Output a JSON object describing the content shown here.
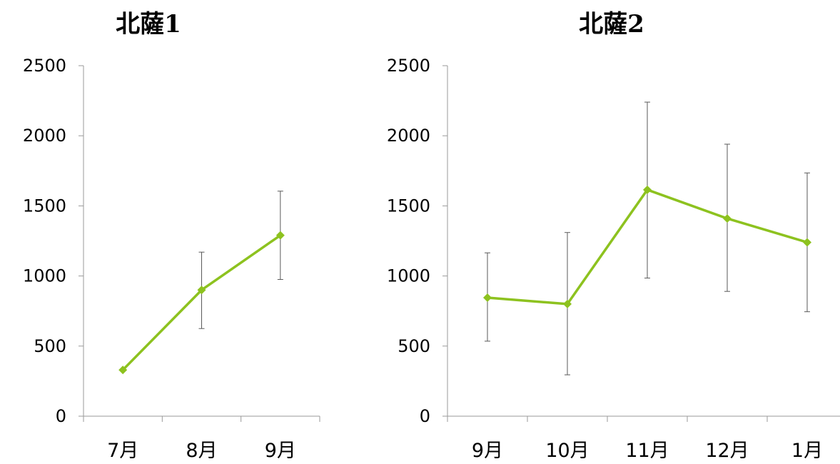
{
  "chart_data": [
    {
      "type": "line",
      "title": "北薩1",
      "categories": [
        "7月",
        "8月",
        "9月"
      ],
      "values": [
        330,
        900,
        1290
      ],
      "error_high": [
        null,
        1170,
        1605
      ],
      "error_low": [
        null,
        625,
        975
      ],
      "ylim": [
        0,
        2500
      ],
      "yticks": [
        "0",
        "500",
        "1000",
        "1500",
        "2000",
        "2500"
      ],
      "color": "#8dc21f",
      "grid": false,
      "legend": "none"
    },
    {
      "type": "line",
      "title": "北薩2",
      "categories": [
        "9月",
        "10月",
        "11月",
        "12月",
        "1月"
      ],
      "values": [
        845,
        800,
        1615,
        1410,
        1240
      ],
      "error_high": [
        1165,
        1310,
        2240,
        1940,
        1735
      ],
      "error_low": [
        535,
        295,
        985,
        890,
        745
      ],
      "ylim": [
        0,
        2500
      ],
      "yticks": [
        "0",
        "500",
        "1000",
        "1500",
        "2000",
        "2500"
      ],
      "color": "#8dc21f",
      "grid": false,
      "legend": "none"
    }
  ]
}
